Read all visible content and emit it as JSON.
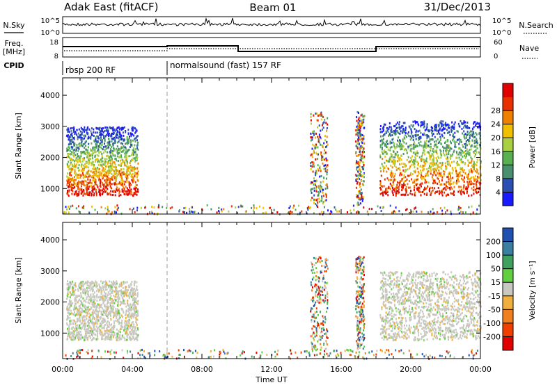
{
  "header": {
    "radar": "Adak East (fitACF)",
    "beam": "Beam 01",
    "date": "31/Dec/2013"
  },
  "side_labels": {
    "nsky": "N.Sky",
    "freq": "Freq.",
    "freq_unit": "[MHz]",
    "cpid": "CPID",
    "nsearch": "N.Search",
    "nave": "Nave"
  },
  "noise_panel": {
    "left_ticks": [
      "10^5",
      "10^0"
    ],
    "right_ticks": [
      "10^5",
      "10^0"
    ]
  },
  "freq_panel": {
    "left_ticks": [
      "18",
      "8"
    ],
    "right_ticks": [
      "60",
      "0"
    ]
  },
  "cpid_panel": {
    "segments": [
      "rbsp 200 RF",
      "normalsound (fast) 157 RF"
    ]
  },
  "chart_data": [
    {
      "type": "heatmap",
      "name": "power",
      "ylabel": "Slant Range [km]",
      "x": [
        0,
        24
      ],
      "y_ticks": [
        "1000",
        "2000",
        "3000",
        "4000"
      ],
      "ylim": [
        180,
        4560
      ],
      "colorbar": {
        "label": "Power [dB]",
        "ticks": [
          "4",
          "8",
          "12",
          "16",
          "20",
          "24",
          "28"
        ],
        "colors": [
          "#1a1aff",
          "#2a4fb0",
          "#4a8f70",
          "#58b050",
          "#a8d040",
          "#f0c000",
          "#f08000",
          "#e83000",
          "#e00000"
        ]
      },
      "regions": [
        {
          "t_start": 0.2,
          "t_end": 4.3,
          "range_km": [
            800,
            3000
          ],
          "level": "high"
        },
        {
          "t_start": 18.2,
          "t_end": 24.0,
          "range_km": [
            800,
            3200
          ],
          "level": "high"
        },
        {
          "t_start": 0.0,
          "t_end": 24.0,
          "range_km": [
            200,
            500
          ],
          "level": "sparse"
        },
        {
          "t_start": 14.2,
          "t_end": 15.2,
          "range_km": [
            500,
            3500
          ],
          "level": "sparse"
        },
        {
          "t_start": 16.8,
          "t_end": 17.3,
          "range_km": [
            500,
            3500
          ],
          "level": "sparse"
        }
      ]
    },
    {
      "type": "heatmap",
      "name": "velocity",
      "ylabel": "Slant Range [km]",
      "x": [
        0,
        24
      ],
      "y_ticks": [
        "1000",
        "2000",
        "3000",
        "4000"
      ],
      "ylim": [
        180,
        4560
      ],
      "colorbar": {
        "label": "Velocity [m s⁻¹]",
        "ticks": [
          "200",
          "100",
          "50",
          "15",
          "-15",
          "-50",
          "-100",
          "-200"
        ],
        "colors": [
          "#2050b0",
          "#3a7fa0",
          "#40a060",
          "#60d040",
          "#c8c8c0",
          "#f0b040",
          "#f08020",
          "#f04000",
          "#e00000"
        ]
      },
      "regions": [
        {
          "t_start": 0.2,
          "t_end": 4.3,
          "range_km": [
            800,
            2700
          ],
          "level": "ground"
        },
        {
          "t_start": 18.2,
          "t_end": 24.0,
          "range_km": [
            800,
            3000
          ],
          "level": "ground"
        },
        {
          "t_start": 0.0,
          "t_end": 24.0,
          "range_km": [
            200,
            500
          ],
          "level": "sparse"
        },
        {
          "t_start": 14.2,
          "t_end": 15.2,
          "range_km": [
            500,
            3500
          ],
          "level": "sparse"
        },
        {
          "t_start": 16.8,
          "t_end": 17.3,
          "range_km": [
            500,
            3500
          ],
          "level": "sparse"
        }
      ]
    }
  ],
  "x_axis": {
    "ticks": [
      "00:00",
      "04:00",
      "08:00",
      "12:00",
      "16:00",
      "20:00",
      "00:00"
    ],
    "label": "Time UT"
  }
}
